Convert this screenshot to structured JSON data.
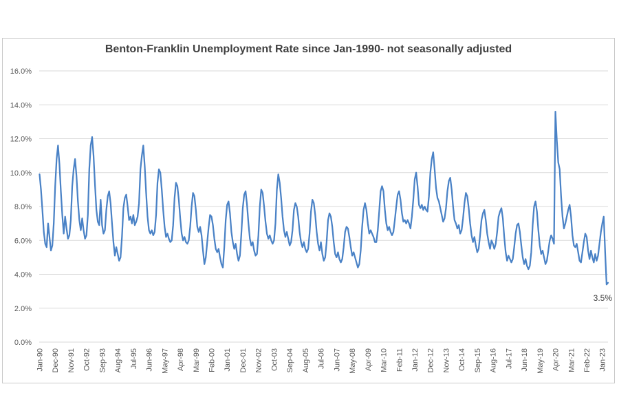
{
  "chart": {
    "title": "Benton-Franklin Unemployment Rate since Jan-1990- not seasonally adjusted"
  },
  "chart_data": {
    "type": "line",
    "title": "Benton-Franklin Unemployment Rate since Jan-1990- not seasonally adjusted",
    "series_name": "Unemployment rate (not seasonally adjusted)",
    "unit": "percent",
    "x_start": "Jan-1990",
    "x_end": "May-2023",
    "x_frequency": "monthly",
    "x_tick_interval_months": 11,
    "x_tick_labels": [
      "Jan-90",
      "Dec-90",
      "Nov-91",
      "Oct-92",
      "Sep-93",
      "Aug-94",
      "Jul-95",
      "Jun-96",
      "May-97",
      "Apr-98",
      "Mar-99",
      "Feb-00",
      "Jan-01",
      "Dec-01",
      "Nov-02",
      "Oct-03",
      "Sep-04",
      "Aug-05",
      "Jul-06",
      "Jun-07",
      "May-08",
      "Apr-09",
      "Mar-10",
      "Feb-11",
      "Jan-12",
      "Dec-12",
      "Nov-13",
      "Oct-14",
      "Sep-15",
      "Aug-16",
      "Jul-17",
      "Jun-18",
      "May-19",
      "Apr-20",
      "Mar-21",
      "Feb-22",
      "Jan-23"
    ],
    "ylim": [
      0,
      16
    ],
    "grid": "horizontal-only",
    "legend": "none",
    "y_ticks": [
      {
        "value": 0,
        "label": "0.0%"
      },
      {
        "value": 2,
        "label": "2.0%"
      },
      {
        "value": 4,
        "label": "4.0%"
      },
      {
        "value": 6,
        "label": "6.0%"
      },
      {
        "value": 8,
        "label": "8.0%"
      },
      {
        "value": 10,
        "label": "10.0%"
      },
      {
        "value": 12,
        "label": "12.0%"
      },
      {
        "value": 14,
        "label": "14.0%"
      },
      {
        "value": 16,
        "label": "16.0%"
      }
    ],
    "values": [
      9.9,
      9.0,
      7.8,
      6.5,
      5.8,
      5.6,
      7.0,
      6.2,
      5.4,
      5.7,
      7.0,
      9.2,
      10.8,
      11.6,
      10.5,
      8.9,
      7.5,
      6.4,
      7.4,
      6.7,
      6.1,
      6.3,
      7.2,
      9.2,
      10.2,
      10.8,
      9.8,
      8.3,
      7.2,
      6.6,
      7.3,
      6.6,
      6.1,
      6.3,
      7.5,
      10.2,
      11.6,
      12.1,
      11.0,
      9.3,
      7.8,
      7.1,
      6.9,
      8.4,
      6.9,
      6.4,
      6.6,
      7.8,
      8.6,
      8.9,
      8.2,
      7.0,
      5.9,
      5.1,
      5.6,
      5.2,
      4.8,
      5.0,
      6.2,
      7.9,
      8.5,
      8.7,
      8.0,
      7.2,
      7.4,
      7.0,
      7.5,
      6.9,
      7.1,
      7.4,
      8.2,
      10.2,
      11.0,
      11.6,
      10.4,
      8.8,
      7.4,
      6.6,
      6.4,
      6.6,
      6.3,
      6.5,
      7.5,
      9.4,
      10.2,
      10.0,
      9.0,
      7.8,
      6.8,
      6.2,
      6.4,
      6.1,
      5.9,
      6.0,
      6.9,
      8.5,
      9.4,
      9.2,
      8.4,
      7.3,
      6.4,
      6.0,
      6.2,
      5.9,
      5.8,
      6.0,
      6.8,
      8.0,
      8.8,
      8.6,
      7.8,
      6.8,
      6.5,
      6.8,
      6.3,
      5.4,
      4.6,
      5.0,
      5.9,
      6.8,
      7.5,
      7.4,
      6.9,
      6.1,
      5.5,
      5.3,
      5.5,
      5.0,
      4.6,
      4.4,
      5.6,
      7.2,
      8.1,
      8.3,
      7.6,
      6.5,
      5.9,
      5.5,
      5.8,
      5.2,
      4.8,
      5.1,
      6.4,
      7.9,
      8.7,
      8.9,
      8.1,
      7.0,
      6.1,
      5.7,
      5.9,
      5.4,
      5.1,
      5.2,
      6.3,
      8.0,
      9.0,
      8.8,
      8.0,
      7.1,
      6.4,
      6.1,
      6.3,
      6.0,
      5.8,
      6.0,
      7.0,
      9.0,
      9.9,
      9.4,
      8.5,
      7.4,
      6.6,
      6.2,
      6.5,
      6.1,
      5.7,
      5.9,
      6.6,
      7.8,
      8.2,
      8.0,
      7.4,
      6.5,
      5.9,
      5.6,
      5.9,
      5.5,
      5.3,
      5.5,
      6.4,
      7.7,
      8.4,
      8.2,
      7.5,
      6.5,
      5.8,
      5.4,
      5.9,
      5.2,
      4.8,
      5.0,
      5.9,
      7.2,
      7.6,
      7.4,
      6.8,
      5.9,
      5.2,
      5.0,
      5.3,
      4.9,
      4.7,
      4.9,
      5.6,
      6.5,
      6.8,
      6.7,
      6.2,
      5.6,
      5.1,
      5.3,
      5.0,
      4.7,
      4.4,
      4.6,
      5.4,
      6.8,
      7.8,
      8.2,
      7.8,
      7.0,
      6.4,
      6.6,
      6.4,
      6.2,
      5.9,
      5.9,
      6.6,
      7.7,
      8.9,
      9.2,
      8.9,
      7.8,
      7.0,
      6.6,
      6.8,
      6.5,
      6.3,
      6.5,
      7.2,
      8.0,
      8.7,
      8.9,
      8.4,
      7.6,
      7.1,
      7.2,
      7.0,
      7.2,
      7.0,
      6.7,
      7.4,
      8.4,
      9.6,
      10.0,
      9.2,
      8.1,
      7.9,
      8.1,
      7.8,
      8.0,
      7.8,
      7.7,
      8.6,
      10.0,
      10.8,
      11.2,
      10.2,
      9.1,
      8.5,
      8.3,
      7.9,
      7.5,
      7.1,
      7.3,
      7.9,
      8.9,
      9.5,
      9.7,
      9.0,
      8.0,
      7.2,
      7.0,
      6.7,
      6.9,
      6.4,
      6.6,
      7.3,
      8.2,
      8.8,
      8.6,
      7.9,
      7.0,
      6.3,
      5.9,
      6.2,
      5.7,
      5.3,
      5.5,
      6.3,
      7.2,
      7.6,
      7.8,
      7.2,
      6.4,
      5.9,
      5.5,
      6.0,
      5.8,
      5.5,
      5.8,
      6.5,
      7.4,
      7.7,
      7.9,
      7.3,
      6.2,
      5.3,
      4.8,
      5.1,
      4.9,
      4.7,
      4.9,
      5.6,
      6.4,
      6.9,
      7.0,
      6.5,
      5.7,
      5.0,
      4.6,
      4.9,
      4.5,
      4.3,
      4.5,
      5.3,
      6.9,
      8.0,
      8.3,
      7.7,
      6.6,
      5.7,
      5.2,
      5.4,
      5.0,
      4.6,
      4.8,
      5.4,
      6.0,
      6.3,
      6.1,
      5.8,
      13.6,
      11.9,
      10.6,
      10.2,
      8.6,
      7.4,
      6.7,
      7.0,
      7.4,
      7.8,
      8.1,
      7.4,
      6.3,
      5.7,
      5.6,
      5.8,
      5.3,
      4.8,
      4.7,
      5.3,
      5.9,
      6.4,
      6.2,
      5.4,
      4.9,
      5.4,
      5.0,
      4.7,
      5.2,
      4.8,
      5.1,
      5.8,
      6.5,
      7.0,
      7.4,
      5.3,
      3.4,
      3.5
    ],
    "notable_points": {
      "covid_spike": {
        "x": "Apr-20",
        "value": 13.6
      },
      "peak_feb_93": {
        "x": "Feb-93",
        "value": 12.1
      },
      "last_point": {
        "x": "May-23",
        "value": 3.5
      }
    },
    "annotation": {
      "text": "3.5%"
    },
    "colors": {
      "line": "#4a82c6",
      "gridline": "#d9d9d9",
      "axis_label": "#595959",
      "title": "#404040",
      "frame_border": "#c9c9c9",
      "background": "#ffffff"
    }
  }
}
